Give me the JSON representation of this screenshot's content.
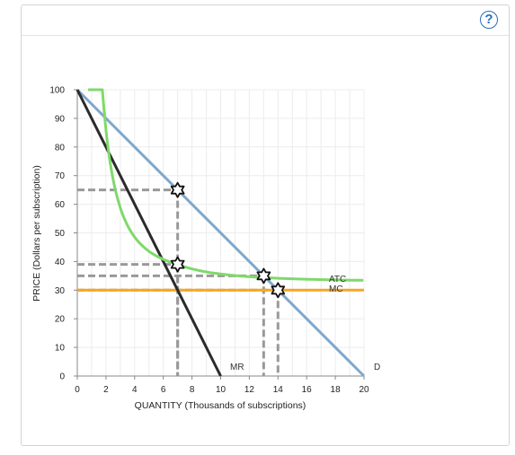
{
  "help": {
    "label": "?"
  },
  "chart_data": {
    "type": "line",
    "title": "",
    "xlabel": "QUANTITY (Thousands of subscriptions)",
    "ylabel": "PRICE (Dollars per subscription)",
    "xlim": [
      0,
      20
    ],
    "ylim": [
      0,
      100
    ],
    "x_ticks": [
      0,
      2,
      4,
      6,
      8,
      10,
      12,
      14,
      16,
      18,
      20
    ],
    "y_ticks": [
      0,
      10,
      20,
      30,
      40,
      50,
      60,
      70,
      80,
      90,
      100
    ],
    "grid": true,
    "series": [
      {
        "name": "D",
        "color": "#7fa7cd",
        "points": [
          [
            0,
            100
          ],
          [
            20,
            0
          ]
        ]
      },
      {
        "name": "MR",
        "color": "#2b2b2b",
        "points": [
          [
            0,
            100
          ],
          [
            10,
            0
          ]
        ]
      },
      {
        "name": "MC",
        "color": "#f5a623",
        "points": [
          [
            0,
            30
          ],
          [
            20,
            30
          ]
        ]
      },
      {
        "name": "ATC",
        "color": "#7fd96a",
        "points": [
          [
            0.75,
            100
          ],
          [
            1,
            82.2
          ],
          [
            1.5,
            62.9
          ],
          [
            2,
            52.7
          ],
          [
            3,
            43.3
          ],
          [
            4,
            39.2
          ],
          [
            5,
            37.1
          ],
          [
            6,
            35.8
          ],
          [
            7,
            39
          ],
          [
            8,
            34.2
          ],
          [
            10,
            33.5
          ],
          [
            13,
            35
          ],
          [
            15,
            33.3
          ],
          [
            17,
            33.1
          ],
          [
            20,
            32.9
          ]
        ]
      }
    ],
    "guides": [
      {
        "x": 7,
        "y": 65
      },
      {
        "x": 7,
        "y": 39
      },
      {
        "x": 13,
        "y": 35
      },
      {
        "x": 14,
        "y": 30
      }
    ],
    "markers": [
      [
        7,
        65
      ],
      [
        7,
        39
      ],
      [
        13,
        35
      ],
      [
        14,
        30
      ]
    ]
  },
  "labels": {
    "atc": "ATC",
    "mc": "MC",
    "mr": "MR",
    "d": "D"
  }
}
